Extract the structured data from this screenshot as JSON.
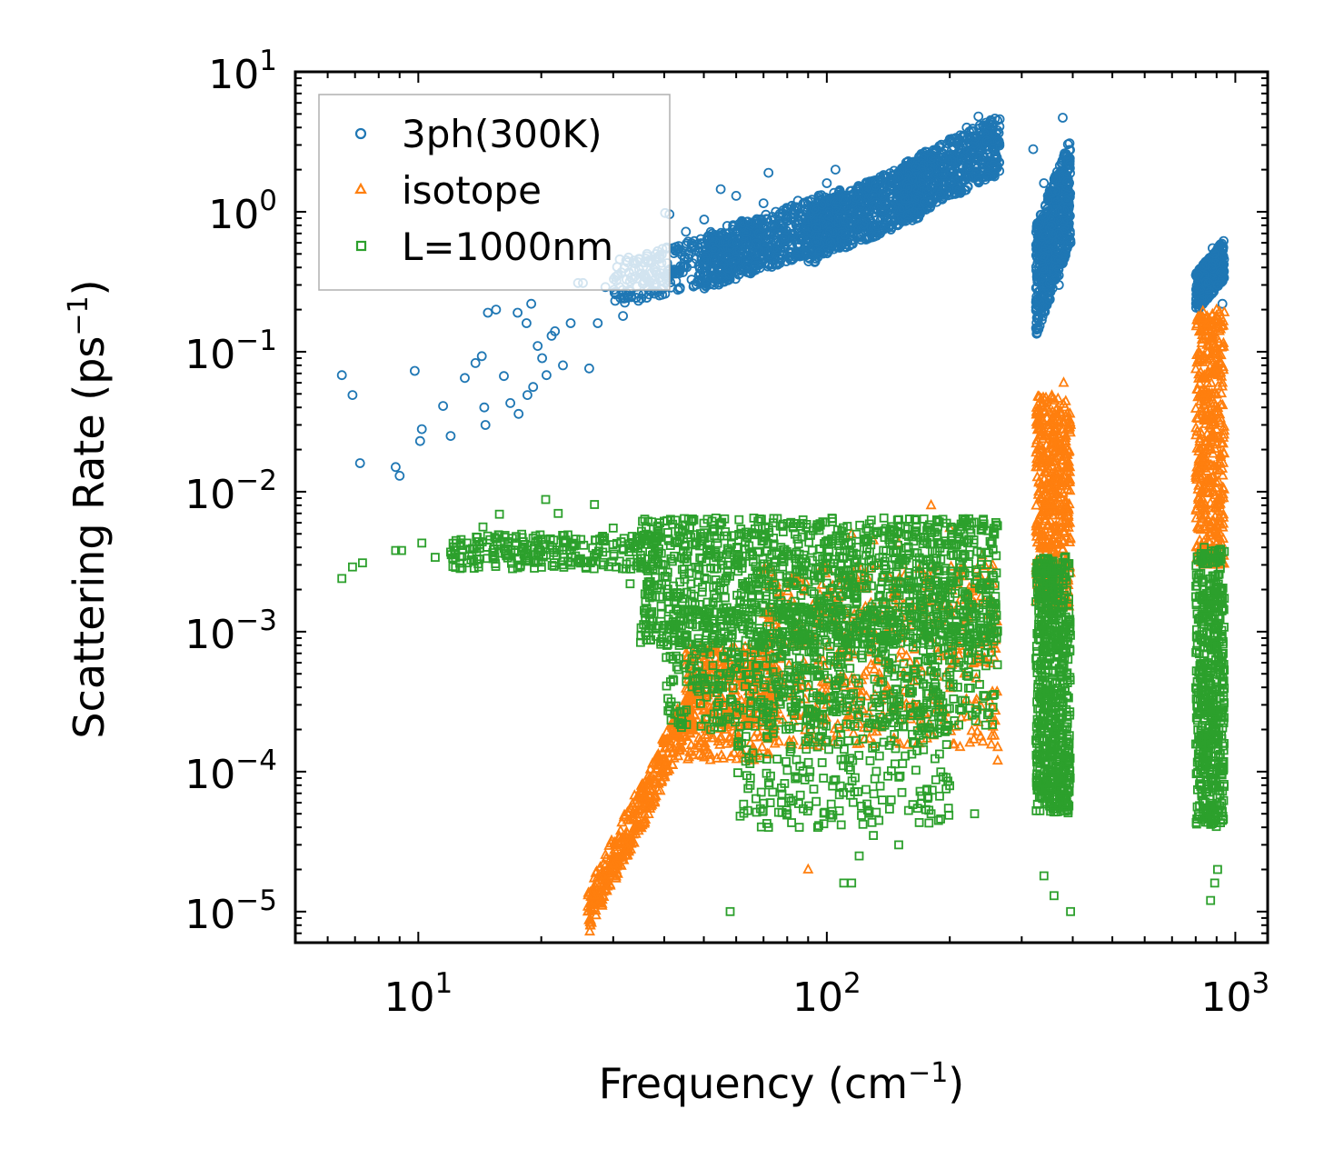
{
  "chart_data": {
    "type": "scatter",
    "title": "",
    "xlabel": "Frequency (cm",
    "xlabel_sup": "−1",
    "xlabel_end": ")",
    "ylabel": "Scattering Rate (ps",
    "ylabel_sup": "−1",
    "ylabel_end": ")",
    "xscale": "log",
    "yscale": "log",
    "xlim": [
      5,
      1200
    ],
    "ylim": [
      6e-06,
      10
    ],
    "x_ticks": [
      {
        "value": 10,
        "base": "10",
        "exp": "1"
      },
      {
        "value": 100,
        "base": "10",
        "exp": "2"
      },
      {
        "value": 1000,
        "base": "10",
        "exp": "3"
      }
    ],
    "y_ticks": [
      {
        "value": 10,
        "base": "10",
        "exp": "1"
      },
      {
        "value": 1,
        "base": "10",
        "exp": "0"
      },
      {
        "value": 0.1,
        "base": "10",
        "exp": "−1"
      },
      {
        "value": 0.01,
        "base": "10",
        "exp": "−2"
      },
      {
        "value": 0.001,
        "base": "10",
        "exp": "−3"
      },
      {
        "value": 0.0001,
        "base": "10",
        "exp": "−4"
      },
      {
        "value": 1e-05,
        "base": "10",
        "exp": "−5"
      }
    ],
    "legend_position": "top-left",
    "series": [
      {
        "name": "3ph(300K)",
        "marker": "circle",
        "color": "#1f77b4",
        "points": [
          [
            6.5,
            0.068
          ],
          [
            6.9,
            0.049
          ],
          [
            7.2,
            0.016
          ],
          [
            8.8,
            0.015
          ],
          [
            9.0,
            0.013
          ],
          [
            9.8,
            0.073
          ],
          [
            10.2,
            0.028
          ],
          [
            10.1,
            0.023
          ],
          [
            11.5,
            0.041
          ],
          [
            12.0,
            0.025
          ],
          [
            13.0,
            0.065
          ],
          [
            13.8,
            0.083
          ],
          [
            14.3,
            0.093
          ],
          [
            14.5,
            0.04
          ],
          [
            14.6,
            0.03
          ],
          [
            14.8,
            0.19
          ],
          [
            15.5,
            0.2
          ],
          [
            16.2,
            0.067
          ],
          [
            16.8,
            0.043
          ],
          [
            17.5,
            0.19
          ],
          [
            17.6,
            0.036
          ],
          [
            18.5,
            0.049
          ],
          [
            18.4,
            0.16
          ],
          [
            18.9,
            0.22
          ],
          [
            19.1,
            0.056
          ],
          [
            19.6,
            0.11
          ],
          [
            20.1,
            0.09
          ],
          [
            20.6,
            0.068
          ],
          [
            21.2,
            0.13
          ],
          [
            21.6,
            0.14
          ],
          [
            22.6,
            0.08
          ],
          [
            23.6,
            0.16
          ],
          [
            24.6,
            0.31
          ],
          [
            25.3,
            0.31
          ],
          [
            26.2,
            0.076
          ],
          [
            27.5,
            0.16
          ],
          [
            28.7,
            0.29
          ],
          [
            30.1,
            0.33
          ],
          [
            31.7,
            0.18
          ],
          [
            33.0,
            0.27
          ],
          [
            34.4,
            0.44
          ],
          [
            36.3,
            0.5
          ],
          [
            38.1,
            0.37
          ],
          [
            40.2,
            0.98
          ],
          [
            41.2,
            0.96
          ],
          [
            43.4,
            0.57
          ],
          [
            45.2,
            0.72
          ],
          [
            47.9,
            0.46
          ],
          [
            50.1,
            0.88
          ],
          [
            55.0,
            1.45
          ],
          [
            60.0,
            1.3
          ],
          [
            64.0,
            0.85
          ],
          [
            70.0,
            1.15
          ],
          [
            72.0,
            1.9
          ],
          [
            75.0,
            1.0
          ],
          [
            80.0,
            0.95
          ],
          [
            85.0,
            1.2
          ],
          [
            90.0,
            0.85
          ],
          [
            100.0,
            1.6
          ],
          [
            105.0,
            2.0
          ],
          [
            110.0,
            1.1
          ],
          [
            120.0,
            1.4
          ],
          [
            130.0,
            1.1
          ],
          [
            140.0,
            1.6
          ],
          [
            150.0,
            1.8
          ],
          [
            165.0,
            2.1
          ],
          [
            180.0,
            2.4
          ],
          [
            200.0,
            3.3
          ],
          [
            220.0,
            4.0
          ],
          [
            235.0,
            4.8
          ],
          [
            250.0,
            4.2
          ],
          [
            262.0,
            3.8
          ],
          [
            320.0,
            2.8
          ],
          [
            340.0,
            1.6
          ],
          [
            355.0,
            0.8
          ],
          [
            370.0,
            0.3
          ],
          [
            378.0,
            4.7
          ],
          [
            385.0,
            1.2
          ],
          [
            395.0,
            0.6
          ],
          [
            820.0,
            0.28
          ],
          [
            850.0,
            0.42
          ],
          [
            880.0,
            0.55
          ],
          [
            905.0,
            0.3
          ],
          [
            930.0,
            0.22
          ]
        ],
        "clusters": [
          {
            "x": [
              30,
              70
            ],
            "y": [
              0.22,
              0.8
            ],
            "n": 350
          },
          {
            "x": [
              50,
              110
            ],
            "y": [
              0.3,
              1.4
            ],
            "n": 600
          },
          {
            "x": [
              90,
              170
            ],
            "y": [
              0.45,
              2.2
            ],
            "n": 700
          },
          {
            "x": [
              150,
              265
            ],
            "y": [
              0.9,
              4.5
            ],
            "n": 650
          },
          {
            "x": [
              325,
              395
            ],
            "y": [
              0.15,
              3.0
            ],
            "n": 600
          },
          {
            "x": [
              800,
              940
            ],
            "y": [
              0.2,
              0.6
            ],
            "n": 300
          }
        ]
      },
      {
        "name": "isotope",
        "marker": "triangle",
        "color": "#ff7f0e",
        "points": [
          [
            26.0,
            1e-05
          ],
          [
            27.0,
            1.3e-05
          ],
          [
            30.0,
            2.5e-05
          ],
          [
            33.0,
            4.5e-05
          ],
          [
            36.0,
            8.5e-05
          ],
          [
            40.0,
            0.00016
          ],
          [
            44.0,
            0.00025
          ],
          [
            48.0,
            0.0004
          ],
          [
            55.0,
            0.0006
          ],
          [
            60.0,
            0.00035
          ],
          [
            65.0,
            0.00065
          ],
          [
            75.0,
            0.0012
          ],
          [
            85.0,
            0.00025
          ],
          [
            90.0,
            2e-05
          ],
          [
            100.0,
            0.0003
          ],
          [
            115.0,
            0.005
          ],
          [
            130.0,
            0.0045
          ],
          [
            150.0,
            0.0043
          ],
          [
            180.0,
            0.008
          ],
          [
            200.0,
            0.0055
          ],
          [
            240.0,
            0.0035
          ],
          [
            262.0,
            0.00012
          ],
          [
            262.0,
            0.00015
          ],
          [
            330.0,
            0.01
          ],
          [
            360.0,
            0.025
          ],
          [
            380.0,
            0.06
          ],
          [
            395.0,
            0.03
          ],
          [
            820.0,
            0.05
          ],
          [
            870.0,
            0.12
          ],
          [
            900.0,
            0.2
          ],
          [
            930.0,
            0.06
          ]
        ],
        "clusters": [
          {
            "x": [
              26,
              48
            ],
            "y": [
              1e-05,
              0.00035
            ],
            "n": 420,
            "diagonal": true
          },
          {
            "x": [
              45,
              75
            ],
            "y": [
              0.00012,
              0.0008
            ],
            "n": 380
          },
          {
            "x": [
              70,
              262
            ],
            "y": [
              0.00015,
              0.003
            ],
            "n": 500
          },
          {
            "x": [
              325,
              395
            ],
            "y": [
              0.0015,
              0.05
            ],
            "n": 500
          },
          {
            "x": [
              800,
              940
            ],
            "y": [
              0.003,
              0.2
            ],
            "n": 450
          }
        ]
      },
      {
        "name": "L=1000nm",
        "marker": "square",
        "color": "#2ca02c",
        "points": [
          [
            6.5,
            0.0024
          ],
          [
            6.9,
            0.0029
          ],
          [
            7.3,
            0.0031
          ],
          [
            8.8,
            0.0038
          ],
          [
            9.1,
            0.0038
          ],
          [
            10.2,
            0.0043
          ],
          [
            11.0,
            0.0034
          ],
          [
            12.0,
            0.0037
          ],
          [
            13.2,
            0.0031
          ],
          [
            14.4,
            0.0056
          ],
          [
            15.8,
            0.0069
          ],
          [
            17.2,
            0.0037
          ],
          [
            18.7,
            0.0032
          ],
          [
            20.5,
            0.0088
          ],
          [
            22.0,
            0.007
          ],
          [
            24.0,
            0.0041
          ],
          [
            27.0,
            0.0081
          ],
          [
            30.0,
            0.0055
          ],
          [
            33.0,
            0.0022
          ],
          [
            37.0,
            0.0011
          ],
          [
            45.0,
            0.0014
          ],
          [
            48.0,
            0.0005
          ],
          [
            52.0,
            0.0002
          ],
          [
            58.0,
            1e-05
          ],
          [
            65.0,
            9e-05
          ],
          [
            72.0,
            4e-05
          ],
          [
            80.0,
            5e-05
          ],
          [
            95.0,
            4e-05
          ],
          [
            110.0,
            1.6e-05
          ],
          [
            115.0,
            1.6e-05
          ],
          [
            120.0,
            2.5e-05
          ],
          [
            130.0,
            3.5e-05
          ],
          [
            150.0,
            3e-05
          ],
          [
            180.0,
            5e-05
          ],
          [
            230.0,
            5e-05
          ],
          [
            340.0,
            1.8e-05
          ],
          [
            360.0,
            1.3e-05
          ],
          [
            395.0,
            1e-05
          ],
          [
            870.0,
            1.2e-05
          ],
          [
            890.0,
            1.6e-05
          ],
          [
            905.0,
            2e-05
          ]
        ],
        "clusters": [
          {
            "x": [
              12,
              40
            ],
            "y": [
              0.0028,
              0.005
            ],
            "n": 250
          },
          {
            "x": [
              35,
              262
            ],
            "y": [
              0.0008,
              0.0065
            ],
            "n": 1300
          },
          {
            "x": [
              40,
              262
            ],
            "y": [
              0.0002,
              0.0015
            ],
            "n": 700
          },
          {
            "x": [
              60,
              200
            ],
            "y": [
              4e-05,
              0.0003
            ],
            "n": 250
          },
          {
            "x": [
              325,
              395
            ],
            "y": [
              5e-05,
              0.0035
            ],
            "n": 650
          },
          {
            "x": [
              800,
              940
            ],
            "y": [
              4e-05,
              0.004
            ],
            "n": 550
          }
        ]
      }
    ]
  }
}
